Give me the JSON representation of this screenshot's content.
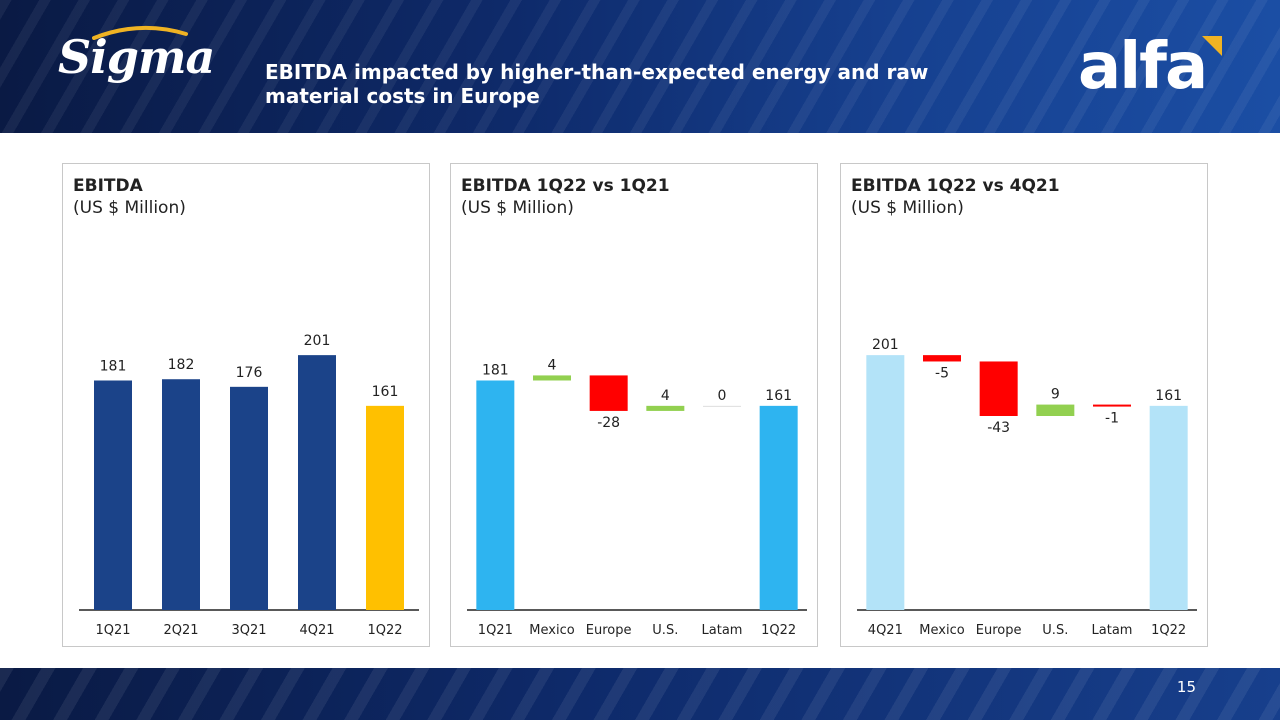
{
  "header": {
    "brand_left": "Sigma",
    "title": "EBITDA impacted by higher-than-expected energy and raw material costs in Europe",
    "brand_right": "alfa"
  },
  "footer": {
    "page_number": "15"
  },
  "colors": {
    "navy_bar": "#1b4389",
    "highlight_bar": "#ffc000",
    "total_bar_blue": "#2eb4f0",
    "total_bar_light": "#b3e3f8",
    "increase": "#92d050",
    "decrease": "#ff0000"
  },
  "chart_data": [
    {
      "type": "bar",
      "title": "EBITDA",
      "subtitle": "(US $ Million)",
      "categories": [
        "1Q21",
        "2Q21",
        "3Q21",
        "4Q21",
        "1Q22"
      ],
      "values": [
        181,
        182,
        176,
        201,
        161
      ],
      "value_labels": [
        "181",
        "182",
        "176",
        "201",
        "161"
      ],
      "bar_colors": [
        "#1b4389",
        "#1b4389",
        "#1b4389",
        "#1b4389",
        "#ffc000"
      ]
    },
    {
      "type": "bar",
      "subtype": "waterfall",
      "title": "EBITDA 1Q22 vs 1Q21",
      "subtitle": "(US $ Million)",
      "categories": [
        "1Q21",
        "Mexico",
        "Europe",
        "U.S.",
        "Latam",
        "1Q22"
      ],
      "values": [
        181,
        4,
        -28,
        4,
        0,
        161
      ],
      "value_labels": [
        "181",
        "4",
        "-28",
        "4",
        "0",
        "161"
      ],
      "is_total": [
        true,
        false,
        false,
        false,
        false,
        true
      ],
      "total_color": "#2eb4f0"
    },
    {
      "type": "bar",
      "subtype": "waterfall",
      "title": "EBITDA 1Q22 vs 4Q21",
      "subtitle": "(US $ Million)",
      "categories": [
        "4Q21",
        "Mexico",
        "Europe",
        "U.S.",
        "Latam",
        "1Q22"
      ],
      "values": [
        201,
        -5,
        -43,
        9,
        -1,
        161
      ],
      "value_labels": [
        "201",
        "-5",
        "-43",
        "9",
        "-1",
        "161"
      ],
      "is_total": [
        true,
        false,
        false,
        false,
        false,
        true
      ],
      "total_color": "#b3e3f8"
    }
  ]
}
